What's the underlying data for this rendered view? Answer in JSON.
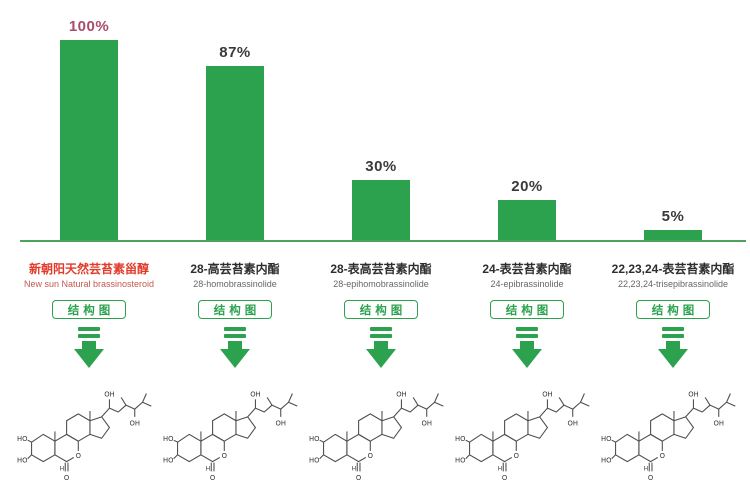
{
  "chart_data": {
    "type": "bar",
    "title": "",
    "xlabel": "",
    "ylabel": "",
    "categories": [
      "新朝阳天然芸苔素甾醇",
      "28-高芸苔素内酯",
      "28-表高芸苔素内酯",
      "24-表芸苔素内酯",
      "22,23,24-表芸苔素内酯"
    ],
    "categories_en": [
      "New sun Natural brassinosteroid",
      "28-homobrassinolide",
      "28-epihomobrassinolide",
      "24-epibrassinolide",
      "22,23,24-trisepibrassinolide"
    ],
    "values": [
      100,
      87,
      30,
      20,
      5
    ],
    "value_labels": [
      "100%",
      "87%",
      "30%",
      "20%",
      "5%"
    ],
    "ylim": [
      0,
      100
    ],
    "grid": false,
    "legend": false,
    "bar_color": "#2ca24f",
    "highlight_value_color": "#aa4a6c",
    "value_label_color": "#3a3a3a"
  },
  "columns": [
    {
      "percent": "100%",
      "cn": "新朝阳天然芸苔素甾醇",
      "en": "New sun Natural brassinosteroid",
      "button": "结构图"
    },
    {
      "percent": "87%",
      "cn": "28-高芸苔素内酯",
      "en": "28-homobrassinolide",
      "button": "结构图"
    },
    {
      "percent": "30%",
      "cn": "28-表高芸苔素内酯",
      "en": "28-epihomobrassinolide",
      "button": "结构图"
    },
    {
      "percent": "20%",
      "cn": "24-表芸苔素内酯",
      "en": "24-epibrassinolide",
      "button": "结构图"
    },
    {
      "percent": "5%",
      "cn": "22,23,24-表芸苔素内酯",
      "en": "22,23,24-trisepibrassinolide",
      "button": "结构图"
    }
  ],
  "structure_labels": {
    "ho_upper": "HO",
    "ho_lower": "HO",
    "oh_chain_top": "OH",
    "oh_chain_bottom": "OH",
    "o_ring": "O",
    "o_carbonyl": "O",
    "h_junction": "H"
  },
  "colors": {
    "bar_green": "#2ca24f",
    "baseline_green": "#4ba35c",
    "highlight_pink": "#aa4a6c",
    "brand_red": "#e23b2a",
    "text_dark": "#3a3a3a",
    "text_gray": "#666666"
  }
}
